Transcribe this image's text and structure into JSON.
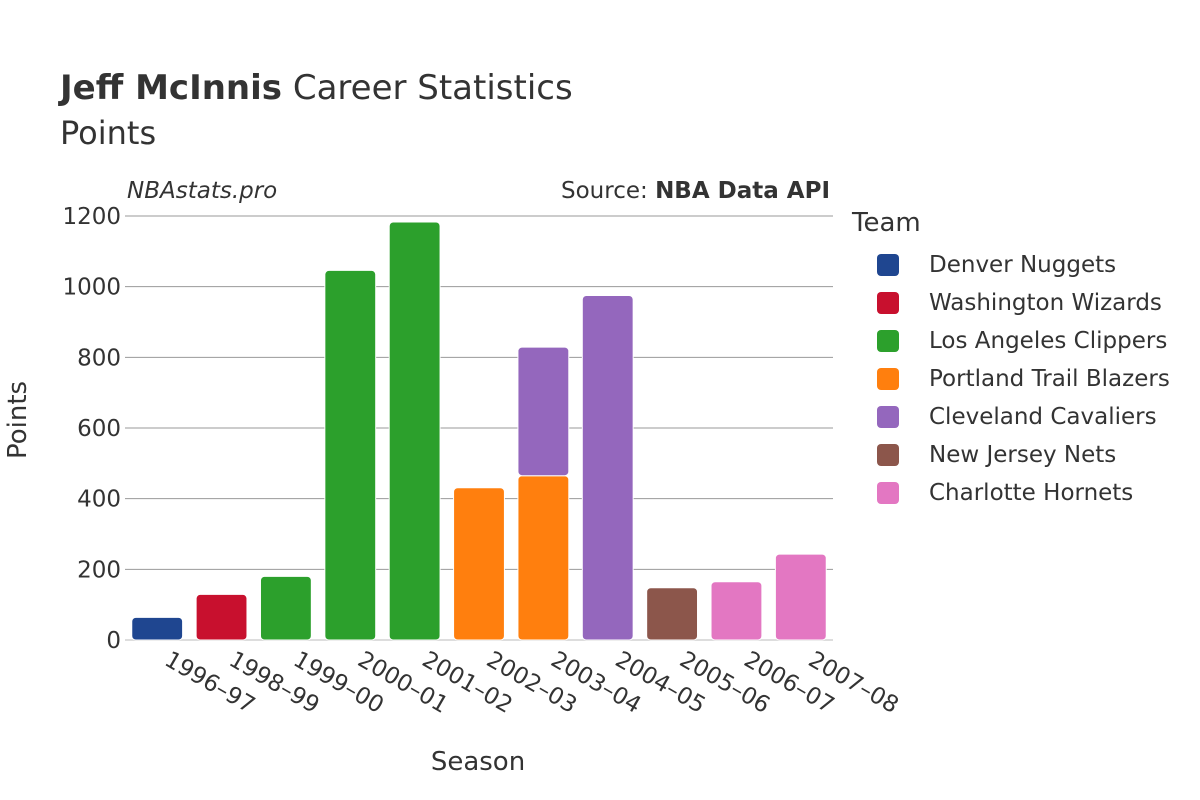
{
  "header": {
    "title_bold": "Jeff McInnis",
    "title_rest": "Career Statistics",
    "subtitle": "Points",
    "watermark": "NBAstats.pro",
    "source_prefix": "Source: ",
    "source_name": "NBA Data API"
  },
  "legend": {
    "title": "Team",
    "items": [
      {
        "label": "Denver Nuggets",
        "color": "#1f4690"
      },
      {
        "label": "Washington Wizards",
        "color": "#c8102e"
      },
      {
        "label": "Los Angeles Clippers",
        "color": "#2ca02c"
      },
      {
        "label": "Portland Trail Blazers",
        "color": "#ff7f0e"
      },
      {
        "label": "Cleveland Cavaliers",
        "color": "#9467bd"
      },
      {
        "label": "New Jersey Nets",
        "color": "#8c564b"
      },
      {
        "label": "Charlotte Hornets",
        "color": "#e377c2"
      }
    ]
  },
  "chart_data": {
    "type": "bar",
    "stacked": true,
    "xlabel": "Season",
    "ylabel": "Points",
    "ylim": [
      0,
      1200
    ],
    "yticks": [
      0,
      200,
      400,
      600,
      800,
      1000,
      1200
    ],
    "grid": true,
    "legend_position": "right",
    "categories": [
      "1996–97",
      "1998–99",
      "1999–00",
      "2000–01",
      "2001–02",
      "2002–03",
      "2003–04",
      "2004–05",
      "2005–06",
      "2006–07",
      "2007–08"
    ],
    "series": [
      {
        "name": "Denver Nuggets",
        "color": "#1f4690",
        "values": [
          64,
          0,
          0,
          0,
          0,
          0,
          0,
          0,
          0,
          0,
          0
        ]
      },
      {
        "name": "Washington Wizards",
        "color": "#c8102e",
        "values": [
          0,
          129,
          0,
          0,
          0,
          0,
          0,
          0,
          0,
          0,
          0
        ]
      },
      {
        "name": "Los Angeles Clippers",
        "color": "#2ca02c",
        "values": [
          0,
          0,
          180,
          1046,
          1183,
          0,
          0,
          0,
          0,
          0,
          0
        ]
      },
      {
        "name": "Portland Trail Blazers",
        "color": "#ff7f0e",
        "values": [
          0,
          0,
          0,
          0,
          0,
          431,
          465,
          0,
          0,
          0,
          0
        ]
      },
      {
        "name": "Cleveland Cavaliers",
        "color": "#9467bd",
        "values": [
          0,
          0,
          0,
          0,
          0,
          0,
          364,
          975,
          0,
          0,
          0
        ]
      },
      {
        "name": "New Jersey Nets",
        "color": "#8c564b",
        "values": [
          0,
          0,
          0,
          0,
          0,
          0,
          0,
          0,
          148,
          0,
          0
        ]
      },
      {
        "name": "Charlotte Hornets",
        "color": "#e377c2",
        "values": [
          0,
          0,
          0,
          0,
          0,
          0,
          0,
          0,
          0,
          165,
          243
        ]
      }
    ]
  }
}
